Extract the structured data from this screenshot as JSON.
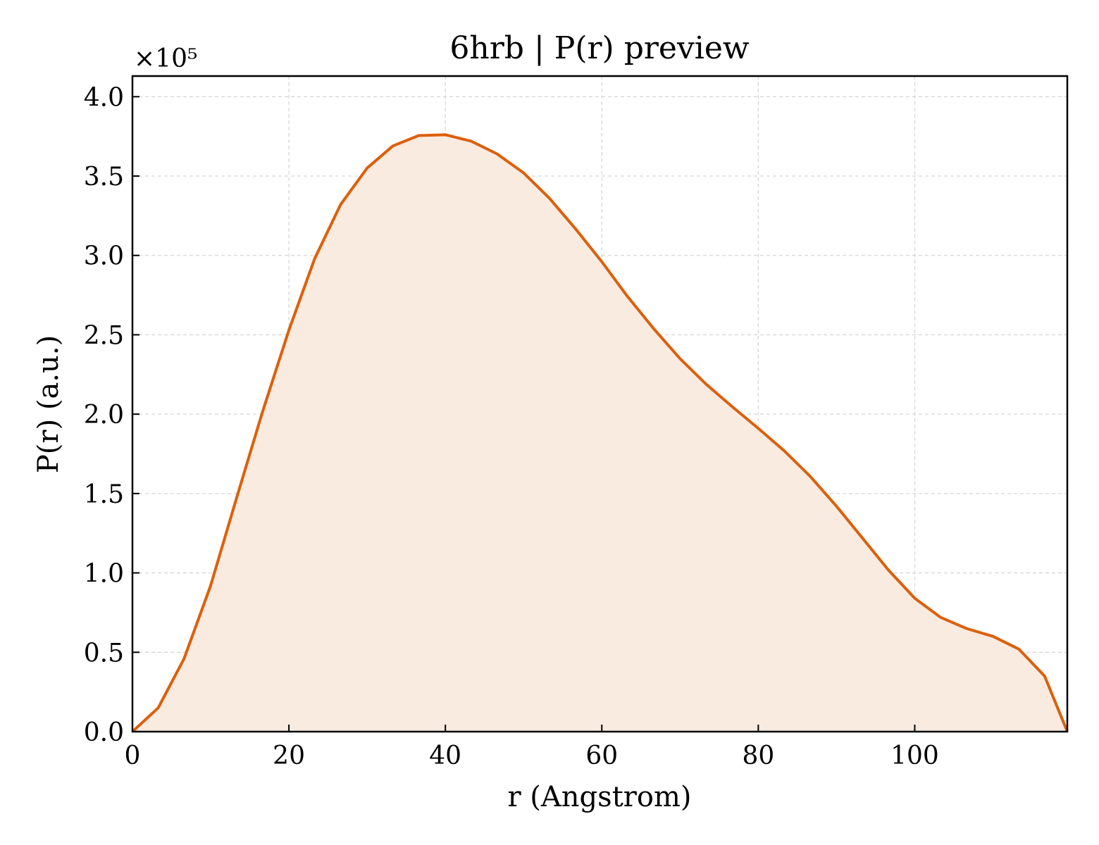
{
  "chart_data": {
    "type": "area",
    "title": "6hrb | P(r) preview",
    "xlabel": "r (Angstrom)",
    "ylabel": "P(r) (a.u.)",
    "y_multiplier_label": "×10⁵",
    "y_scale_factor": 100000,
    "xlim": [
      0,
      119.5
    ],
    "ylim": [
      0,
      413000
    ],
    "xticks": [
      0,
      20,
      40,
      60,
      80,
      100
    ],
    "yticks": [
      0,
      50000,
      100000,
      150000,
      200000,
      250000,
      300000,
      350000,
      400000
    ],
    "grid": true,
    "line_color": "#dd5f0b",
    "fill_color": "#f9ebe0",
    "series": [
      {
        "x": [
          0,
          3.3,
          6.6,
          10,
          13.3,
          16.6,
          20,
          23.3,
          26.6,
          30,
          33.3,
          36.6,
          40,
          43.3,
          46.6,
          50,
          53.3,
          56.6,
          60,
          63.3,
          66.6,
          70,
          73.3,
          76.6,
          80,
          83.3,
          86.6,
          90,
          93.3,
          96.6,
          100,
          103.3,
          106.6,
          110,
          113.3,
          116.6,
          119.5
        ],
        "y": [
          0,
          15000,
          46000,
          92000,
          147000,
          201000,
          253000,
          298000,
          332000,
          355000,
          369000,
          375500,
          376000,
          372000,
          364000,
          352000,
          336000,
          317000,
          296000,
          274000,
          254000,
          235000,
          219000,
          205000,
          191000,
          177000,
          161000,
          142000,
          122000,
          102000,
          84000,
          72000,
          65000,
          60000,
          52000,
          35000,
          0
        ]
      }
    ]
  }
}
